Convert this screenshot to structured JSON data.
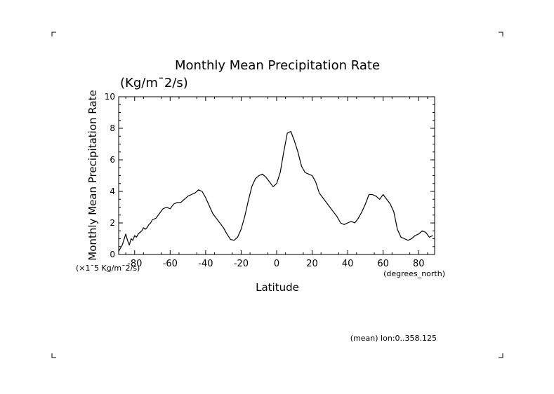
{
  "chart_data": {
    "type": "line",
    "title": "Monthly Mean Precipitation Rate",
    "units": "(Kg/m¯2/s)",
    "ylabel": "Monthly Mean Precipitation Rate",
    "xlabel": "Latitude",
    "x_units": "(degrees_north)",
    "y_scale_note": "(×1¯5 Kg/m¯2/s)",
    "footnote": "(mean) lon:0..358.125",
    "xlim": [
      -89,
      89
    ],
    "ylim": [
      0,
      10
    ],
    "x_ticks": [
      -80,
      -60,
      -40,
      -20,
      0,
      20,
      40,
      60,
      80
    ],
    "x_tick_labels": [
      "-80",
      "-60",
      "-40",
      "-20",
      "0",
      "20",
      "40",
      "60",
      "80"
    ],
    "y_ticks": [
      0,
      2,
      4,
      6,
      8,
      10
    ],
    "y_tick_labels": [
      "0",
      "2",
      "4",
      "6",
      "8",
      "10"
    ],
    "grid": false,
    "line_color": "#000000",
    "series": [
      {
        "x": [
          -89,
          -87,
          -85,
          -84,
          -83,
          -82,
          -81,
          -80,
          -79,
          -78,
          -77,
          -76,
          -75,
          -74,
          -73,
          -72,
          -71,
          -70,
          -68,
          -66,
          -64,
          -62,
          -60,
          -58,
          -56,
          -54,
          -52,
          -50,
          -48,
          -46,
          -44,
          -42,
          -40,
          -38,
          -36,
          -34,
          -32,
          -30,
          -28,
          -26,
          -24,
          -22,
          -20,
          -18,
          -16,
          -14,
          -12,
          -10,
          -8,
          -6,
          -4,
          -2,
          0,
          2,
          4,
          6,
          8,
          10,
          12,
          14,
          16,
          18,
          20,
          22,
          24,
          26,
          28,
          30,
          32,
          34,
          36,
          38,
          40,
          42,
          44,
          46,
          48,
          50,
          52,
          54,
          56,
          58,
          60,
          62,
          64,
          66,
          68,
          70,
          72,
          74,
          76,
          78,
          80,
          82,
          84,
          86,
          88
        ],
        "y": [
          0.2,
          0.6,
          1.3,
          0.9,
          0.6,
          1.0,
          0.9,
          1.2,
          1.1,
          1.3,
          1.4,
          1.5,
          1.7,
          1.6,
          1.7,
          1.9,
          2.0,
          2.2,
          2.3,
          2.6,
          2.9,
          3.0,
          2.9,
          3.2,
          3.3,
          3.3,
          3.5,
          3.7,
          3.8,
          3.9,
          4.1,
          4.0,
          3.6,
          3.1,
          2.6,
          2.3,
          2.0,
          1.7,
          1.3,
          0.95,
          0.9,
          1.1,
          1.6,
          2.4,
          3.4,
          4.3,
          4.8,
          5.0,
          5.1,
          4.9,
          4.6,
          4.3,
          4.5,
          5.2,
          6.5,
          7.7,
          7.8,
          7.2,
          6.5,
          5.6,
          5.2,
          5.1,
          5.0,
          4.6,
          3.9,
          3.6,
          3.3,
          3.0,
          2.7,
          2.4,
          2.0,
          1.9,
          2.0,
          2.1,
          2.0,
          2.3,
          2.7,
          3.2,
          3.8,
          3.8,
          3.7,
          3.5,
          3.8,
          3.5,
          3.2,
          2.7,
          1.6,
          1.1,
          1.0,
          0.9,
          1.0,
          1.2,
          1.3,
          1.5,
          1.4,
          1.1,
          1.2
        ]
      }
    ]
  }
}
